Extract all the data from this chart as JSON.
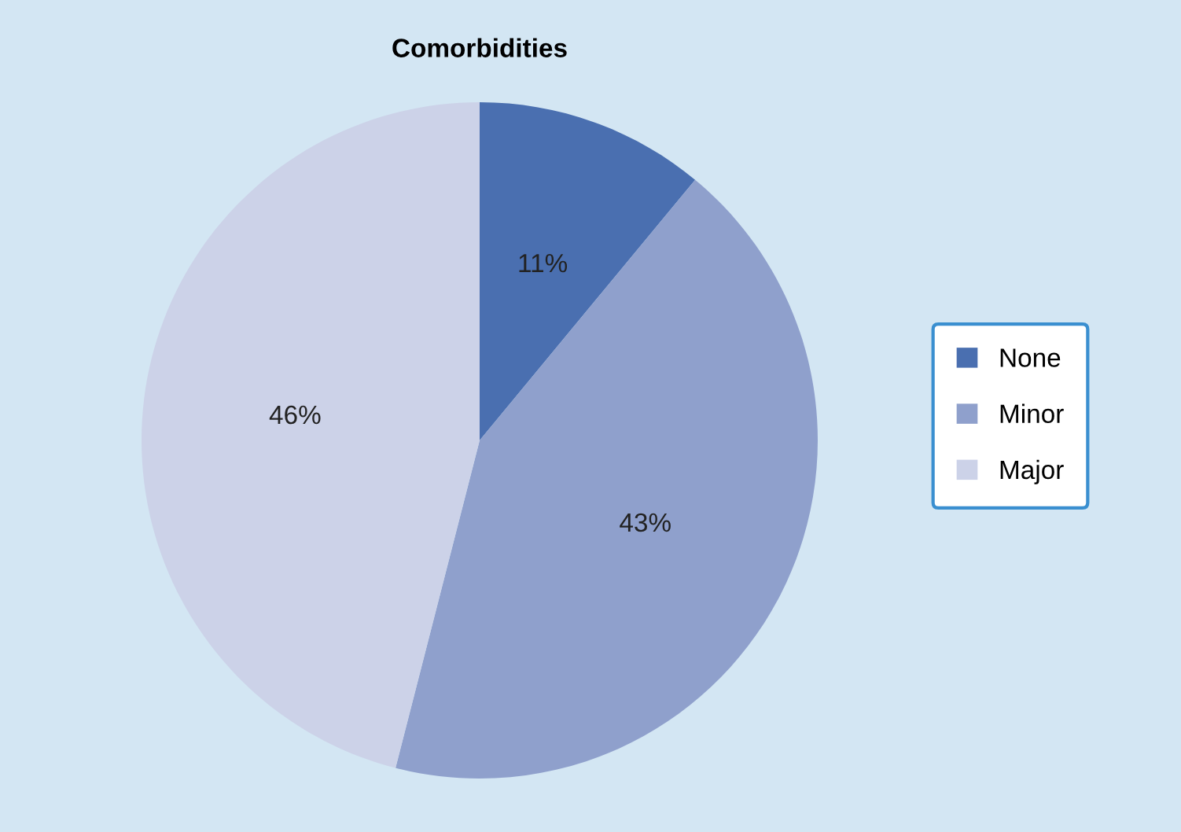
{
  "chart_data": {
    "type": "pie",
    "title": "Comorbidities",
    "categories": [
      "None",
      "Minor",
      "Major"
    ],
    "values": [
      11,
      43,
      46
    ],
    "colors": [
      "#4a6fb0",
      "#8fa0cc",
      "#ccd2e8"
    ],
    "value_labels": [
      "11%",
      "43%",
      "46%"
    ],
    "legend": "right"
  }
}
